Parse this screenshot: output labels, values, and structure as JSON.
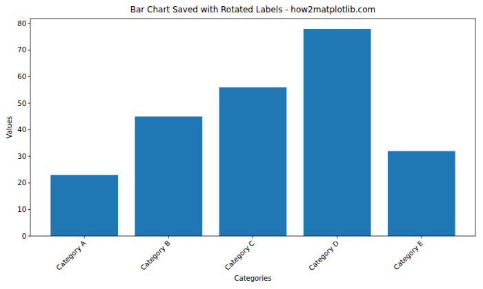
{
  "chart_data": {
    "type": "bar",
    "title": "Bar Chart Saved with Rotated Labels - how2matplotlib.com",
    "x_label": "Categories",
    "y_label": "Values",
    "categories": [
      "Category A",
      "Category B",
      "Category C",
      "Category D",
      "Category E"
    ],
    "values": [
      23,
      45,
      56,
      78,
      32
    ],
    "color": "#1f77b4",
    "ylim": [
      0,
      81.9
    ],
    "yticks": [
      0,
      10,
      20,
      30,
      40,
      50,
      60,
      70,
      80
    ],
    "grid": false
  }
}
